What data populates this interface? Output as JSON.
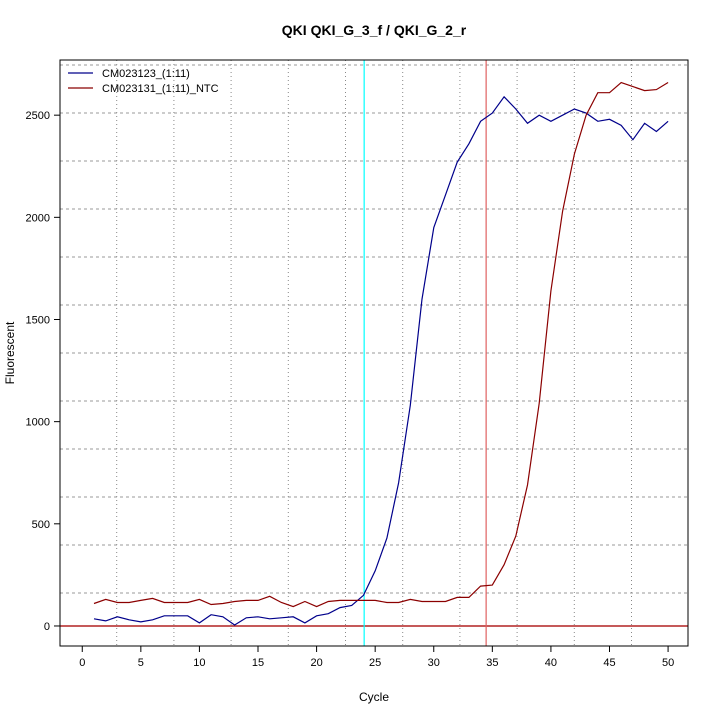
{
  "chart_data": {
    "type": "line",
    "title": "QKI  QKI_G_3_f / QKI_G_2_r",
    "xlabel": "Cycle",
    "ylabel": "Fluorescent",
    "xlim": [
      -1.9,
      51.7
    ],
    "ylim": [
      -98,
      2770
    ],
    "xticks": [
      0,
      5,
      10,
      15,
      20,
      25,
      30,
      35,
      40,
      45,
      50
    ],
    "yticks": [
      0,
      500,
      1000,
      1500,
      2000,
      2500
    ],
    "grid": true,
    "legend_position": "top-left",
    "x": [
      1,
      2,
      3,
      4,
      5,
      6,
      7,
      8,
      9,
      10,
      11,
      12,
      13,
      14,
      15,
      16,
      17,
      18,
      19,
      20,
      21,
      22,
      23,
      24,
      25,
      26,
      27,
      28,
      29,
      30,
      31,
      32,
      33,
      34,
      35,
      36,
      37,
      38,
      39,
      40,
      41,
      42,
      43,
      44,
      45,
      46,
      47,
      48,
      49,
      50
    ],
    "series": [
      {
        "name": "CM023123_(1:11)",
        "color": "#00008B",
        "values": [
          35,
          25,
          45,
          30,
          20,
          30,
          50,
          50,
          50,
          15,
          55,
          45,
          5,
          40,
          45,
          35,
          40,
          45,
          15,
          50,
          60,
          90,
          100,
          150,
          270,
          430,
          700,
          1080,
          1600,
          1950,
          2110,
          2270,
          2360,
          2470,
          2510,
          2590,
          2530,
          2460,
          2500,
          2470,
          2500,
          2530,
          2510,
          2470,
          2480,
          2450,
          2380,
          2460,
          2420,
          2470
        ]
      },
      {
        "name": "CM023131_(1:11)_NTC",
        "color": "#8B0000",
        "values": [
          110,
          130,
          115,
          115,
          125,
          135,
          115,
          115,
          115,
          130,
          105,
          110,
          120,
          125,
          125,
          145,
          115,
          95,
          120,
          95,
          120,
          125,
          125,
          125,
          125,
          115,
          115,
          130,
          120,
          120,
          120,
          140,
          140,
          195,
          200,
          300,
          440,
          690,
          1090,
          1640,
          2030,
          2310,
          2500,
          2610,
          2610,
          2660,
          2640,
          2620,
          2625,
          2660
        ]
      }
    ],
    "vlines": [
      {
        "x": 24.06,
        "color": "#00FFFF"
      },
      {
        "x": 34.47,
        "color": "#E06060"
      }
    ],
    "hlines": [
      {
        "y": 0,
        "color": "#B22222"
      }
    ]
  }
}
